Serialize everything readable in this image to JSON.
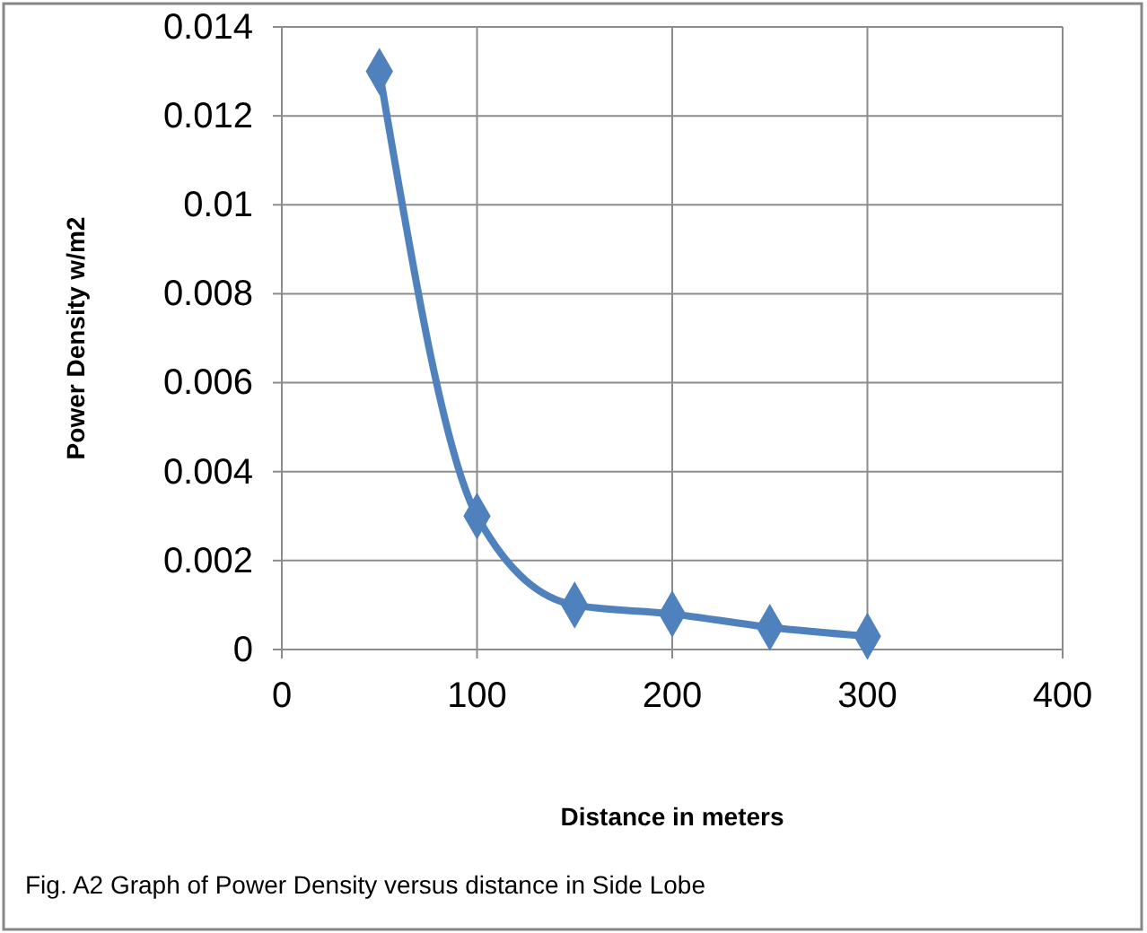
{
  "chart_data": {
    "type": "line",
    "xlabel": "Distance in meters",
    "ylabel": "Power Density w/m2",
    "annotations": [
      "Fig. A2 Graph of Power Density versus distance in Side Lobe"
    ],
    "x": [
      50,
      100,
      150,
      200,
      250,
      300
    ],
    "series": [
      {
        "color": "#4f81bd",
        "values": [
          0.013,
          0.003,
          0.001,
          0.0008,
          0.0005,
          0.0003
        ]
      }
    ],
    "xlim": [
      0,
      400
    ],
    "xticks": [
      0,
      100,
      200,
      300,
      400
    ],
    "ylim": [
      0,
      0.014
    ],
    "yticks": [
      0,
      0.002,
      0.004,
      0.006,
      0.008,
      0.01,
      0.012,
      0.014
    ],
    "grid": true,
    "marker": "diamond",
    "line_style": "solid"
  }
}
